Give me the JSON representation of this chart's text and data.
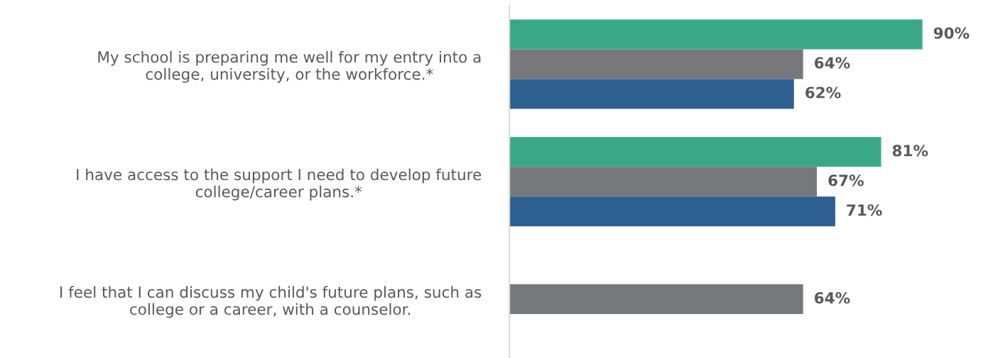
{
  "chart_data": {
    "type": "bar",
    "orientation": "horizontal",
    "categories": [
      "My school is preparing me well for my entry into a\ncollege, university, or the workforce.*",
      "I have access to the support I need to develop future\ncollege/career plans.*",
      "I feel that I can discuss my child's future plans, such as\ncollege or a career, with a counselor."
    ],
    "series": [
      {
        "color": "#3aa886",
        "values": [
          90,
          81,
          null
        ],
        "value_labels": [
          "90%",
          "81%",
          null
        ]
      },
      {
        "color": "#77787b",
        "values": [
          64,
          67,
          64
        ],
        "value_labels": [
          "64%",
          "67%",
          "64%"
        ]
      },
      {
        "color": "#2e5f91",
        "values": [
          62,
          71,
          null
        ],
        "value_labels": [
          "62%",
          "71%",
          null
        ]
      }
    ],
    "tick_labels": "y",
    "grid": false,
    "legend": false
  }
}
